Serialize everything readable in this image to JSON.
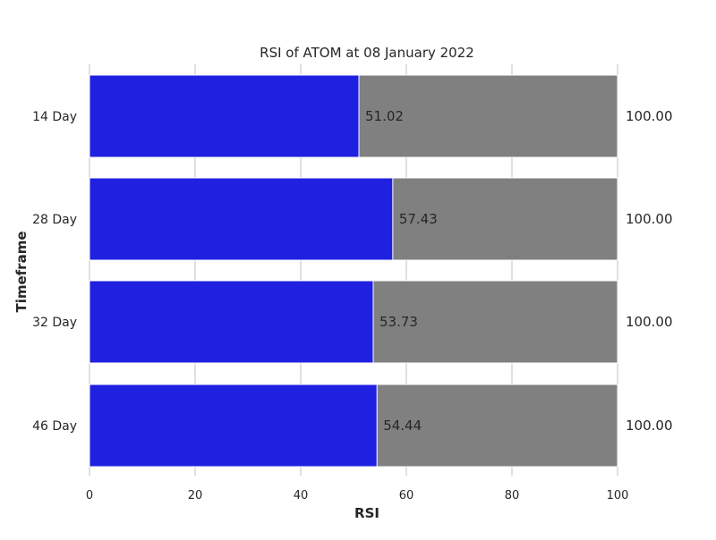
{
  "chart_data": {
    "type": "bar",
    "orientation": "horizontal",
    "stacked_background": true,
    "title": "RSI of ATOM at 08 January 2022",
    "xlabel": "RSI",
    "ylabel": "Timeframe",
    "categories": [
      "14 Day",
      "28 Day",
      "32 Day",
      "46 Day"
    ],
    "series": [
      {
        "values": [
          51.02,
          57.43,
          53.73,
          54.44
        ],
        "color": "#2020e0",
        "labels": [
          "51.02",
          "57.43",
          "53.73",
          "54.44"
        ]
      },
      {
        "values": [
          100,
          100,
          100,
          100
        ],
        "color": "#808080",
        "labels": [
          "100.00",
          "100.00",
          "100.00",
          "100.00"
        ]
      }
    ],
    "xlim": [
      0,
      100
    ],
    "xticks": [
      0,
      20,
      40,
      60,
      80,
      100
    ],
    "xtick_labels": [
      "0",
      "20",
      "40",
      "60",
      "80",
      "100"
    ],
    "grid": true,
    "grid_color": "#cccccc",
    "text_color": "#262626",
    "background": "#ffffff"
  }
}
